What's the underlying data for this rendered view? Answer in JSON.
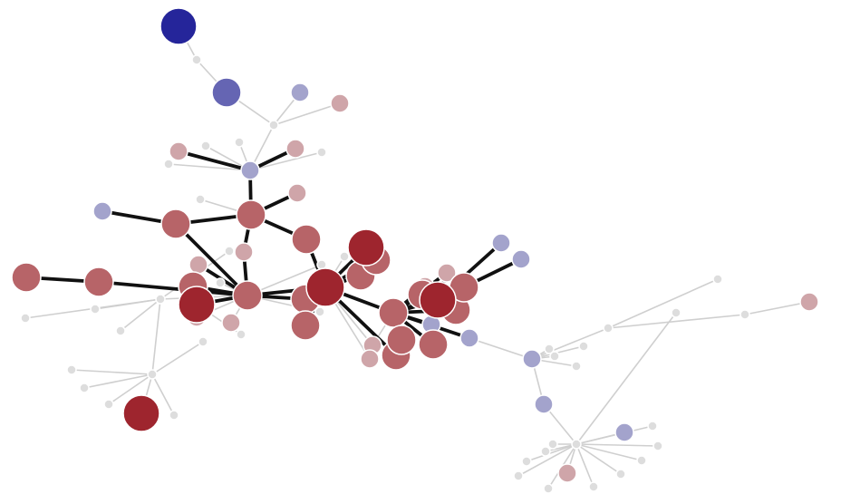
{
  "graph": {
    "colors": {
      "blue": "#25259a",
      "blue_mid": "#6565b3",
      "blue_light": "#a3a3cc",
      "gray": "#dddddd",
      "red_light": "#cfa5a9",
      "red_mid": "#b76468",
      "red_dark": "#9e252e",
      "edge_light": "#cfcfcf",
      "edge_heavy": "#111111"
    },
    "nodes": [
      {
        "id": "n1",
        "color": "blue",
        "size": "xl"
      },
      {
        "id": "n2",
        "color": "gray",
        "size": "dot"
      },
      {
        "id": "n3",
        "color": "blue_mid",
        "size": "l"
      },
      {
        "id": "n4",
        "color": "blue_light",
        "size": "s"
      },
      {
        "id": "n5",
        "color": "red_light",
        "size": "s"
      },
      {
        "id": "n6",
        "color": "gray",
        "size": "dot"
      },
      {
        "id": "n7",
        "color": "blue_light",
        "size": "s"
      },
      {
        "id": "n8",
        "color": "red_light",
        "size": "s"
      },
      {
        "id": "n9",
        "color": "red_light",
        "size": "s"
      },
      {
        "id": "n10",
        "color": "gray",
        "size": "dot"
      },
      {
        "id": "n11",
        "color": "gray",
        "size": "dot"
      },
      {
        "id": "n12",
        "color": "gray",
        "size": "dot"
      },
      {
        "id": "n13",
        "color": "gray",
        "size": "dot"
      },
      {
        "id": "n14",
        "color": "red_light",
        "size": "s"
      },
      {
        "id": "n15",
        "color": "gray",
        "size": "dot"
      },
      {
        "id": "n16",
        "color": "blue_light",
        "size": "s"
      },
      {
        "id": "n17",
        "color": "red_mid",
        "size": "l"
      },
      {
        "id": "n18",
        "color": "red_mid",
        "size": "l"
      },
      {
        "id": "n19",
        "color": "red_mid",
        "size": "l"
      },
      {
        "id": "n20",
        "color": "red_light",
        "size": "s"
      },
      {
        "id": "n21",
        "color": "red_mid",
        "size": "l"
      },
      {
        "id": "n22",
        "color": "red_mid",
        "size": "l"
      },
      {
        "id": "n23",
        "color": "red_light",
        "size": "s"
      },
      {
        "id": "n24",
        "color": "red_dark",
        "size": "xl"
      },
      {
        "id": "n25",
        "color": "red_mid",
        "size": "l"
      },
      {
        "id": "n26",
        "color": "red_mid",
        "size": "l"
      },
      {
        "id": "n27",
        "color": "red_light",
        "size": "s"
      },
      {
        "id": "n28",
        "color": "red_light",
        "size": "s"
      },
      {
        "id": "n29",
        "color": "red_mid",
        "size": "l"
      },
      {
        "id": "n30",
        "color": "red_mid",
        "size": "l"
      },
      {
        "id": "n31",
        "color": "red_dark",
        "size": "xxl"
      },
      {
        "id": "n32",
        "color": "red_mid",
        "size": "l"
      },
      {
        "id": "n33",
        "color": "red_dark",
        "size": "xl"
      },
      {
        "id": "n34",
        "color": "red_mid",
        "size": "l"
      },
      {
        "id": "n35",
        "color": "red_mid",
        "size": "l"
      },
      {
        "id": "n36",
        "color": "red_light",
        "size": "s"
      },
      {
        "id": "n37",
        "color": "red_light",
        "size": "s"
      },
      {
        "id": "n38",
        "color": "red_dark",
        "size": "xl"
      },
      {
        "id": "n39",
        "color": "red_mid",
        "size": "l"
      },
      {
        "id": "n40",
        "color": "red_light",
        "size": "s"
      },
      {
        "id": "n41",
        "color": "blue_light",
        "size": "s"
      },
      {
        "id": "n42",
        "color": "blue_light",
        "size": "s"
      },
      {
        "id": "n43",
        "color": "red_mid",
        "size": "l"
      },
      {
        "id": "n44",
        "color": "red_mid",
        "size": "l"
      },
      {
        "id": "n45",
        "color": "red_light",
        "size": "s"
      },
      {
        "id": "n46",
        "color": "blue_light",
        "size": "s"
      },
      {
        "id": "n47",
        "color": "red_mid",
        "size": "l"
      },
      {
        "id": "n48",
        "color": "blue_light",
        "size": "s"
      },
      {
        "id": "n49",
        "color": "red_mid",
        "size": "l"
      },
      {
        "id": "n50",
        "color": "red_mid",
        "size": "l"
      },
      {
        "id": "n51",
        "color": "red_dark",
        "size": "xl"
      },
      {
        "id": "n52",
        "color": "gray",
        "size": "dot"
      },
      {
        "id": "n53",
        "color": "gray",
        "size": "dot"
      },
      {
        "id": "n54",
        "color": "gray",
        "size": "dot"
      },
      {
        "id": "n55",
        "color": "gray",
        "size": "dot"
      },
      {
        "id": "n56",
        "color": "gray",
        "size": "dot"
      },
      {
        "id": "n57",
        "color": "gray",
        "size": "dot"
      },
      {
        "id": "n58",
        "color": "gray",
        "size": "dot"
      },
      {
        "id": "n59",
        "color": "gray",
        "size": "dot"
      },
      {
        "id": "n60",
        "color": "gray",
        "size": "dot"
      },
      {
        "id": "n61",
        "color": "gray",
        "size": "dot"
      },
      {
        "id": "n62",
        "color": "gray",
        "size": "dot"
      },
      {
        "id": "n63",
        "color": "gray",
        "size": "dot"
      },
      {
        "id": "n64",
        "color": "gray",
        "size": "dot"
      },
      {
        "id": "n65",
        "color": "gray",
        "size": "dot"
      },
      {
        "id": "n66",
        "color": "gray",
        "size": "dot"
      },
      {
        "id": "n67",
        "color": "gray",
        "size": "dot"
      },
      {
        "id": "n68",
        "color": "gray",
        "size": "dot"
      },
      {
        "id": "n69",
        "color": "gray",
        "size": "dot"
      },
      {
        "id": "n70",
        "color": "gray",
        "size": "dot"
      },
      {
        "id": "n71",
        "color": "red_light",
        "size": "s"
      },
      {
        "id": "n72",
        "color": "gray",
        "size": "dot"
      },
      {
        "id": "n73",
        "color": "blue_light",
        "size": "s"
      },
      {
        "id": "n74",
        "color": "gray",
        "size": "dot"
      },
      {
        "id": "n75",
        "color": "blue_light",
        "size": "s"
      },
      {
        "id": "n76",
        "color": "blue_light",
        "size": "s"
      },
      {
        "id": "n77",
        "color": "red_light",
        "size": "s"
      },
      {
        "id": "n78",
        "color": "gray",
        "size": "dot"
      },
      {
        "id": "n79",
        "color": "gray",
        "size": "dot"
      },
      {
        "id": "n80",
        "color": "gray",
        "size": "dot"
      },
      {
        "id": "n81",
        "color": "gray",
        "size": "dot"
      },
      {
        "id": "n82",
        "color": "gray",
        "size": "dot"
      },
      {
        "id": "n83",
        "color": "gray",
        "size": "dot"
      },
      {
        "id": "n84",
        "color": "gray",
        "size": "dot"
      },
      {
        "id": "n85",
        "color": "gray",
        "size": "dot"
      },
      {
        "id": "n86",
        "color": "gray",
        "size": "dot"
      },
      {
        "id": "n87",
        "color": "gray",
        "size": "dot"
      },
      {
        "id": "n88",
        "color": "gray",
        "size": "dot"
      },
      {
        "id": "n89",
        "color": "gray",
        "size": "dot"
      },
      {
        "id": "n90",
        "color": "gray",
        "size": "dot"
      },
      {
        "id": "n91",
        "color": "gray",
        "size": "dot"
      }
    ],
    "edges": [
      {
        "from": "n1",
        "to": "n2",
        "weight": "light"
      },
      {
        "from": "n2",
        "to": "n3",
        "weight": "light"
      },
      {
        "from": "n3",
        "to": "n6",
        "weight": "light"
      },
      {
        "from": "n4",
        "to": "n6",
        "weight": "light"
      },
      {
        "from": "n5",
        "to": "n6",
        "weight": "light"
      },
      {
        "from": "n6",
        "to": "n7",
        "weight": "light"
      },
      {
        "from": "n7",
        "to": "n8",
        "weight": "heavy"
      },
      {
        "from": "n7",
        "to": "n9",
        "weight": "heavy"
      },
      {
        "from": "n7",
        "to": "n10",
        "weight": "light"
      },
      {
        "from": "n7",
        "to": "n11",
        "weight": "light"
      },
      {
        "from": "n7",
        "to": "n12",
        "weight": "light"
      },
      {
        "from": "n7",
        "to": "n13",
        "weight": "light"
      },
      {
        "from": "n7",
        "to": "n18",
        "weight": "heavy"
      },
      {
        "from": "n16",
        "to": "n17",
        "weight": "heavy"
      },
      {
        "from": "n17",
        "to": "n18",
        "weight": "heavy"
      },
      {
        "from": "n17",
        "to": "n22",
        "weight": "heavy"
      },
      {
        "from": "n18",
        "to": "n14",
        "weight": "heavy"
      },
      {
        "from": "n18",
        "to": "n19",
        "weight": "heavy"
      },
      {
        "from": "n18",
        "to": "n20",
        "weight": "heavy"
      },
      {
        "from": "n18",
        "to": "n15",
        "weight": "light"
      },
      {
        "from": "n19",
        "to": "n31",
        "weight": "heavy"
      },
      {
        "from": "n20",
        "to": "n22",
        "weight": "heavy"
      },
      {
        "from": "n21",
        "to": "n25",
        "weight": "heavy"
      },
      {
        "from": "n23",
        "to": "n22",
        "weight": "heavy"
      },
      {
        "from": "n24",
        "to": "n22",
        "weight": "heavy"
      },
      {
        "from": "n25",
        "to": "n22",
        "weight": "heavy"
      },
      {
        "from": "n26",
        "to": "n22",
        "weight": "heavy"
      },
      {
        "from": "n27",
        "to": "n22",
        "weight": "light"
      },
      {
        "from": "n28",
        "to": "n22",
        "weight": "light"
      },
      {
        "from": "n22",
        "to": "n29",
        "weight": "heavy"
      },
      {
        "from": "n22",
        "to": "n31",
        "weight": "heavy"
      },
      {
        "from": "n22",
        "to": "n52",
        "weight": "light"
      },
      {
        "from": "n29",
        "to": "n31",
        "weight": "heavy"
      },
      {
        "from": "n30",
        "to": "n31",
        "weight": "heavy"
      },
      {
        "from": "n31",
        "to": "n32",
        "weight": "heavy"
      },
      {
        "from": "n31",
        "to": "n33",
        "weight": "heavy"
      },
      {
        "from": "n31",
        "to": "n34",
        "weight": "heavy"
      },
      {
        "from": "n31",
        "to": "n35",
        "weight": "heavy"
      },
      {
        "from": "n31",
        "to": "n36",
        "weight": "light"
      },
      {
        "from": "n31",
        "to": "n37",
        "weight": "light"
      },
      {
        "from": "n31",
        "to": "n39",
        "weight": "heavy"
      },
      {
        "from": "n31",
        "to": "n72",
        "weight": "light"
      },
      {
        "from": "n33",
        "to": "n34",
        "weight": "heavy"
      },
      {
        "from": "n39",
        "to": "n38",
        "weight": "heavy"
      },
      {
        "from": "n39",
        "to": "n40",
        "weight": "heavy"
      },
      {
        "from": "n39",
        "to": "n45",
        "weight": "heavy"
      },
      {
        "from": "n39",
        "to": "n43",
        "weight": "heavy"
      },
      {
        "from": "n39",
        "to": "n44",
        "weight": "heavy"
      },
      {
        "from": "n39",
        "to": "n46",
        "weight": "heavy"
      },
      {
        "from": "n39",
        "to": "n47",
        "weight": "heavy"
      },
      {
        "from": "n39",
        "to": "n48",
        "weight": "heavy"
      },
      {
        "from": "n39",
        "to": "n49",
        "weight": "heavy"
      },
      {
        "from": "n39",
        "to": "n50",
        "weight": "heavy"
      },
      {
        "from": "n39",
        "to": "n36",
        "weight": "light"
      },
      {
        "from": "n38",
        "to": "n41",
        "weight": "heavy"
      },
      {
        "from": "n38",
        "to": "n42",
        "weight": "heavy"
      },
      {
        "from": "n38",
        "to": "n43",
        "weight": "heavy"
      },
      {
        "from": "n38",
        "to": "n44",
        "weight": "heavy"
      },
      {
        "from": "n38",
        "to": "n40",
        "weight": "heavy"
      },
      {
        "from": "n46",
        "to": "n73",
        "weight": "light"
      },
      {
        "from": "n22",
        "to": "n56",
        "weight": "light"
      },
      {
        "from": "n56",
        "to": "n53",
        "weight": "light"
      },
      {
        "from": "n56",
        "to": "n54",
        "weight": "light"
      },
      {
        "from": "n56",
        "to": "n55",
        "weight": "light"
      },
      {
        "from": "n56",
        "to": "n57",
        "weight": "light"
      },
      {
        "from": "n57",
        "to": "n58",
        "weight": "light"
      },
      {
        "from": "n57",
        "to": "n59",
        "weight": "light"
      },
      {
        "from": "n57",
        "to": "n60",
        "weight": "light"
      },
      {
        "from": "n57",
        "to": "n61",
        "weight": "light"
      },
      {
        "from": "n57",
        "to": "n51",
        "weight": "light"
      },
      {
        "from": "n56",
        "to": "n62",
        "weight": "light"
      },
      {
        "from": "n57",
        "to": "n63",
        "weight": "light"
      },
      {
        "from": "n73",
        "to": "n64",
        "weight": "light"
      },
      {
        "from": "n73",
        "to": "n65",
        "weight": "light"
      },
      {
        "from": "n73",
        "to": "n66",
        "weight": "light"
      },
      {
        "from": "n73",
        "to": "n67",
        "weight": "light"
      },
      {
        "from": "n73",
        "to": "n68",
        "weight": "light"
      },
      {
        "from": "n67",
        "to": "n69",
        "weight": "light"
      },
      {
        "from": "n67",
        "to": "n70",
        "weight": "light"
      },
      {
        "from": "n70",
        "to": "n71",
        "weight": "light"
      },
      {
        "from": "n73",
        "to": "n75",
        "weight": "light"
      },
      {
        "from": "n75",
        "to": "n74",
        "weight": "light"
      },
      {
        "from": "n74",
        "to": "n76",
        "weight": "light"
      },
      {
        "from": "n74",
        "to": "n77",
        "weight": "light"
      },
      {
        "from": "n74",
        "to": "n78",
        "weight": "light"
      },
      {
        "from": "n74",
        "to": "n79",
        "weight": "light"
      },
      {
        "from": "n74",
        "to": "n80",
        "weight": "light"
      },
      {
        "from": "n74",
        "to": "n81",
        "weight": "light"
      },
      {
        "from": "n74",
        "to": "n82",
        "weight": "light"
      },
      {
        "from": "n74",
        "to": "n83",
        "weight": "light"
      },
      {
        "from": "n74",
        "to": "n84",
        "weight": "light"
      },
      {
        "from": "n74",
        "to": "n85",
        "weight": "light"
      },
      {
        "from": "n74",
        "to": "n86",
        "weight": "light"
      },
      {
        "from": "n74",
        "to": "n87",
        "weight": "light"
      },
      {
        "from": "n74",
        "to": "n88",
        "weight": "light"
      },
      {
        "from": "n24",
        "to": "n89",
        "weight": "light"
      },
      {
        "from": "n22",
        "to": "n90",
        "weight": "light"
      },
      {
        "from": "n22",
        "to": "n91",
        "weight": "light"
      }
    ]
  }
}
